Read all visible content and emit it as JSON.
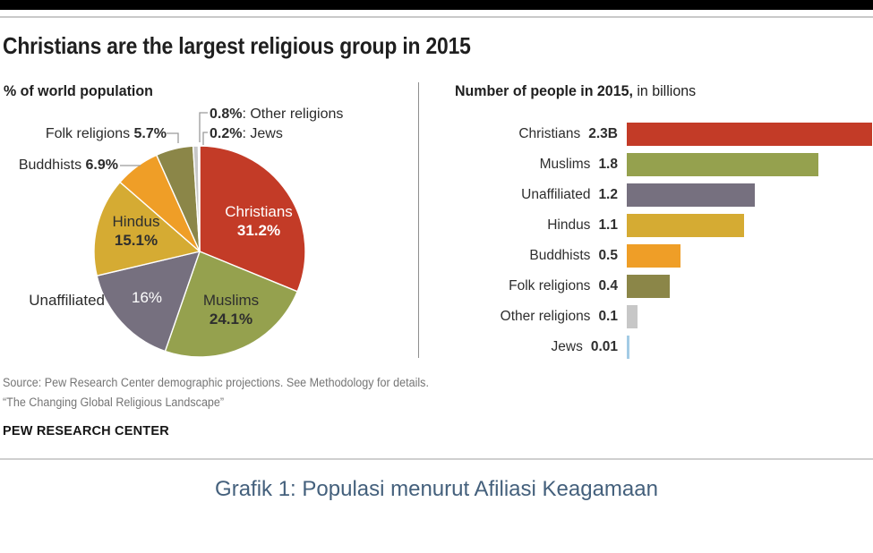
{
  "header": {
    "title": "Christians are the largest religious group in 2015"
  },
  "pie": {
    "title": "% of world population",
    "slices": [
      {
        "label": "Christians",
        "pct": 31.2,
        "pct_label": "31.2%",
        "color": "#C33B27"
      },
      {
        "label": "Muslims",
        "pct": 24.1,
        "pct_label": "24.1%",
        "color": "#95A14E"
      },
      {
        "label": "Unaffiliated",
        "pct": 16,
        "pct_label": "16%",
        "color": "#76707F"
      },
      {
        "label": "Hindus",
        "pct": 15.1,
        "pct_label": "15.1%",
        "color": "#D5AB33"
      },
      {
        "label": "Buddhists",
        "pct": 6.9,
        "pct_label": "6.9%",
        "color": "#EF9E27"
      },
      {
        "label": "Folk religions",
        "pct": 5.7,
        "pct_label": "5.7%",
        "color": "#8B8648"
      },
      {
        "label": "Other religions",
        "pct": 0.8,
        "pct_label": "0.8%",
        "color": "#C7C7C7"
      },
      {
        "label": "Jews",
        "pct": 0.2,
        "pct_label": "0.2%",
        "color": "#A3CBE5"
      }
    ],
    "callouts": {
      "folk": {
        "name": "Folk religions ",
        "pct": "5.7%"
      },
      "buddhists": {
        "name": "Buddhists ",
        "pct": "6.9%"
      },
      "other": {
        "pct": "0.8%",
        "rest": ": Other religions"
      },
      "jews": {
        "pct": "0.2%",
        "rest": ": Jews"
      }
    }
  },
  "bars": {
    "title_bold": "Number of people in 2015,",
    "title_rest": " in billions",
    "rows": [
      {
        "label": "Christians",
        "value": 2.3,
        "value_label": "2.3B",
        "color": "#C33B27"
      },
      {
        "label": "Muslims",
        "value": 1.8,
        "value_label": "1.8",
        "color": "#95A14E"
      },
      {
        "label": "Unaffiliated",
        "value": 1.2,
        "value_label": "1.2",
        "color": "#76707F"
      },
      {
        "label": "Hindus",
        "value": 1.1,
        "value_label": "1.1",
        "color": "#D5AB33"
      },
      {
        "label": "Buddhists",
        "value": 0.5,
        "value_label": "0.5",
        "color": "#EF9E27"
      },
      {
        "label": "Folk religions",
        "value": 0.4,
        "value_label": "0.4",
        "color": "#8B8648"
      },
      {
        "label": "Other religions",
        "value": 0.1,
        "value_label": "0.1",
        "color": "#C7C7C7"
      },
      {
        "label": "Jews",
        "value": 0.01,
        "value_label": "0.01",
        "color": "#A3CBE5"
      }
    ]
  },
  "footer": {
    "source_line1": "Source: Pew Research Center demographic projections. See Methodology for details.",
    "source_line2": "“The Changing Global Religious Landscape”",
    "brand": "PEW RESEARCH CENTER"
  },
  "caption": {
    "text": "Grafik 1: Populasi menurut Afiliasi Keagamaan",
    "color": "#44607C"
  },
  "colors": {
    "accent_red": "#C33B27",
    "callout_line": "#9a9a9a",
    "rule_gray": "#c9c9c9",
    "caption_blue": "#44607C"
  },
  "chart_data": [
    {
      "type": "pie",
      "title": "% of world population",
      "categories": [
        "Christians",
        "Muslims",
        "Unaffiliated",
        "Hindus",
        "Buddhists",
        "Folk religions",
        "Other religions",
        "Jews"
      ],
      "values": [
        31.2,
        24.1,
        16,
        15.1,
        6.9,
        5.7,
        0.8,
        0.2
      ],
      "unit": "% of world population",
      "start_angle": "12 o'clock, clockwise",
      "colors": [
        "#C33B27",
        "#95A14E",
        "#76707F",
        "#D5AB33",
        "#EF9E27",
        "#8B8648",
        "#C7C7C7",
        "#A3CBE5"
      ]
    },
    {
      "type": "bar",
      "title": "Number of people in 2015, in billions",
      "orientation": "horizontal",
      "categories": [
        "Christians",
        "Muslims",
        "Unaffiliated",
        "Hindus",
        "Buddhists",
        "Folk religions",
        "Other religions",
        "Jews"
      ],
      "values": [
        2.3,
        1.8,
        1.2,
        1.1,
        0.5,
        0.4,
        0.1,
        0.01
      ],
      "data_labels": [
        "2.3B",
        "1.8",
        "1.2",
        "1.1",
        "0.5",
        "0.4",
        "0.1",
        "0.01"
      ],
      "xlim": [
        0,
        2.3
      ],
      "grid": false,
      "legend": false,
      "colors": [
        "#C33B27",
        "#95A14E",
        "#76707F",
        "#D5AB33",
        "#EF9E27",
        "#8B8648",
        "#C7C7C7",
        "#A3CBE5"
      ]
    }
  ]
}
